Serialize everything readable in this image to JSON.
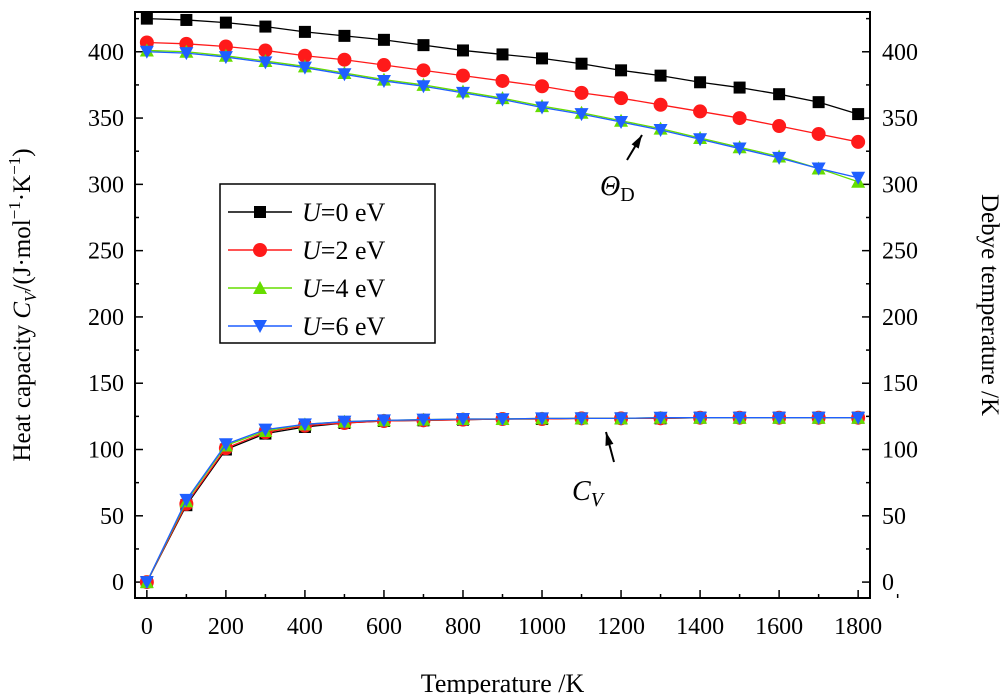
{
  "chart_data": {
    "type": "line",
    "xlabel": "Temperature /K",
    "ylabel": "Heat capacity C_V/(J·mol⁻¹·K⁻¹)",
    "ylabel_parts": [
      "Heat capacity ",
      "C",
      "V",
      "/(J·mol",
      "−1",
      "·K",
      "−1",
      ")"
    ],
    "y2label": "Debye temperature /K",
    "xlim": [
      -30,
      1830
    ],
    "ylim": [
      -12,
      430
    ],
    "y2lim": [
      -12,
      430
    ],
    "xticks": [
      0,
      200,
      400,
      600,
      800,
      1000,
      1200,
      1400,
      1600,
      1800
    ],
    "yticks": [
      0,
      50,
      100,
      150,
      200,
      250,
      300,
      350,
      400
    ],
    "x": [
      0,
      100,
      200,
      300,
      400,
      500,
      600,
      700,
      800,
      900,
      1000,
      1100,
      1200,
      1300,
      1400,
      1500,
      1600,
      1700,
      1800
    ],
    "legend_position": "center-left",
    "annotations": [
      {
        "text": "Θ",
        "sub": "D"
      },
      {
        "text": "C",
        "sub": "V"
      }
    ],
    "series": [
      {
        "name": "U=0 eV",
        "u": "U",
        "rest": "=0 eV",
        "color": "#000000",
        "marker": "square",
        "theta": [
          425,
          424,
          422,
          419,
          415,
          412,
          409,
          405,
          401,
          398,
          395,
          391,
          386,
          382,
          377,
          373,
          368,
          362,
          353
        ],
        "cv": [
          0,
          58,
          100,
          112,
          117,
          120,
          121.5,
          122,
          122.5,
          123,
          123,
          123.5,
          123.5,
          123.5,
          124,
          124,
          124,
          124,
          124
        ]
      },
      {
        "name": "U=2 eV",
        "u": "U",
        "rest": "=2 eV",
        "color": "#ff1a1a",
        "marker": "circle",
        "theta": [
          407,
          406,
          404,
          401,
          397,
          394,
          390,
          386,
          382,
          378,
          374,
          369,
          365,
          360,
          355,
          350,
          344,
          338,
          332
        ],
        "cv": [
          0,
          59,
          101,
          113,
          118,
          120,
          121.5,
          122,
          122.5,
          123,
          123,
          123.5,
          123.5,
          123.5,
          124,
          124,
          124,
          124,
          124
        ]
      },
      {
        "name": "U=4 eV",
        "u": "U",
        "rest": "=4 eV",
        "color": "#66dd00",
        "marker": "triangle-up",
        "theta": [
          401,
          400,
          397,
          393,
          389,
          384,
          379,
          375,
          370,
          365,
          359,
          354,
          348,
          342,
          335,
          328,
          321,
          312,
          302
        ],
        "cv": [
          0,
          61,
          103,
          114,
          119,
          121,
          122,
          122.5,
          123,
          123,
          123.5,
          123.5,
          123.5,
          124,
          124,
          124,
          124,
          124,
          124
        ]
      },
      {
        "name": "U=6 eV",
        "u": "U",
        "rest": "=6 eV",
        "color": "#1f5fff",
        "marker": "triangle-down",
        "theta": [
          400,
          399,
          396,
          392,
          388,
          383,
          378,
          374,
          369,
          364,
          358,
          353,
          347,
          341,
          334,
          327,
          320,
          312,
          305
        ],
        "cv": [
          0,
          62,
          104,
          115,
          119,
          121,
          122,
          122.5,
          123,
          123,
          123.5,
          123.5,
          123.5,
          124,
          124,
          124,
          124,
          124,
          124
        ]
      }
    ]
  }
}
